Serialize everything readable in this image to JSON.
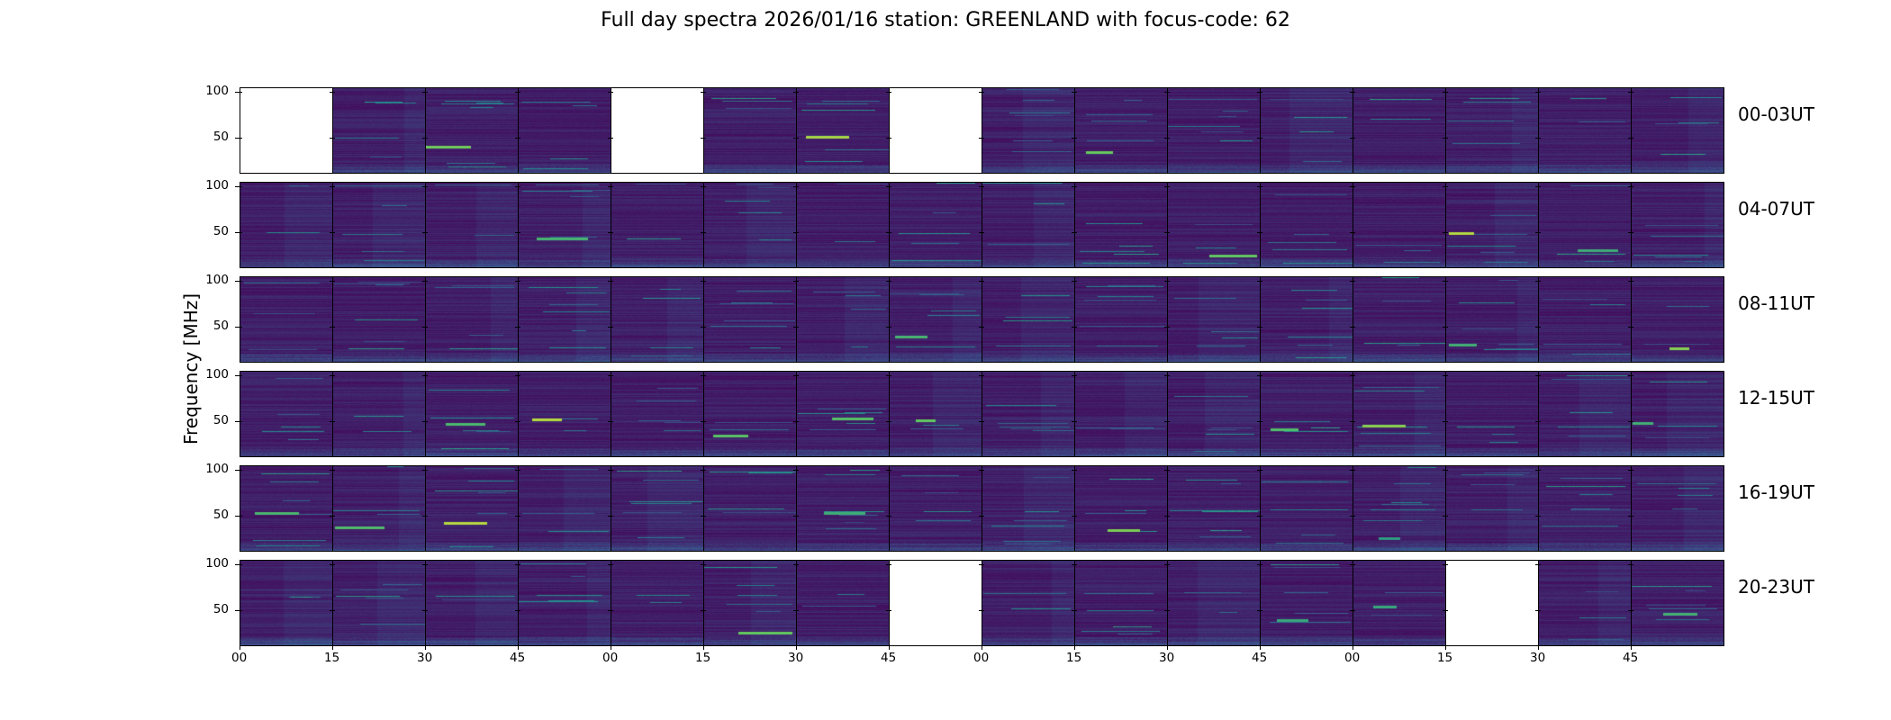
{
  "title": "Full day spectra 2026/01/16 station: GREENLAND with focus-code: 62",
  "colors": {
    "background": "#440154",
    "low": "#46085c",
    "mid": "#31688e",
    "high": "#35b779",
    "peak": "#b5de2b",
    "empty": "#ffffff"
  },
  "chart_data": {
    "type": "heatmap",
    "title": "Full day spectra 2026/01/16 station: GREENLAND with focus-code: 62",
    "xlabel": "",
    "ylabel": "Frequency [MHz]",
    "ylim": [
      10,
      105
    ],
    "yticks": [
      50,
      100
    ],
    "xtick_labels": [
      "00",
      "15",
      "30",
      "45",
      "00",
      "15",
      "30",
      "45",
      "00",
      "15",
      "30",
      "45",
      "00",
      "15",
      "30",
      "45"
    ],
    "colormap": "viridis",
    "rows": [
      {
        "label": "00-03UT",
        "missing_panels": [
          0,
          4,
          7
        ]
      },
      {
        "label": "04-07UT",
        "missing_panels": []
      },
      {
        "label": "08-11UT",
        "missing_panels": []
      },
      {
        "label": "12-15UT",
        "missing_panels": []
      },
      {
        "label": "16-19UT",
        "missing_panels": []
      },
      {
        "label": "20-23UT",
        "missing_panels": [
          7,
          13
        ]
      }
    ],
    "panels_per_row": 16,
    "minutes_per_panel": 15
  }
}
